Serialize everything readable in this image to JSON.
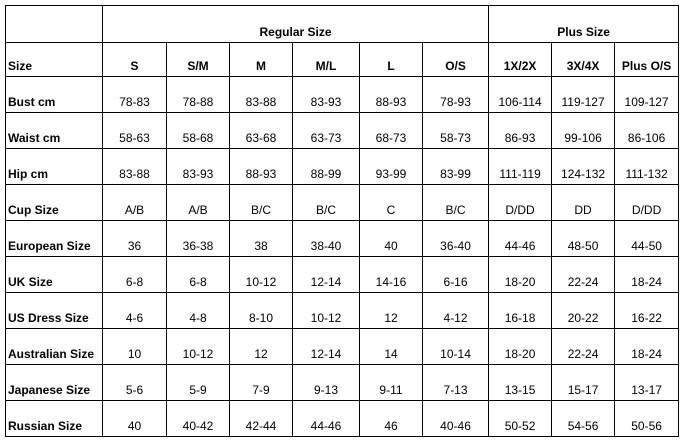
{
  "groups": {
    "regular": "Regular Size",
    "plus": "Plus Size"
  },
  "header": [
    "Size",
    "S",
    "S/M",
    "M",
    "M/L",
    "L",
    "O/S",
    "1X/2X",
    "3X/4X",
    "Plus O/S"
  ],
  "rows": [
    [
      "Bust cm",
      "78-83",
      "78-88",
      "83-88",
      "83-93",
      "88-93",
      "78-93",
      "106-114",
      "119-127",
      "109-127"
    ],
    [
      "Waist cm",
      "58-63",
      "58-68",
      "63-68",
      "63-73",
      "68-73",
      "58-73",
      "86-93",
      "99-106",
      "86-106"
    ],
    [
      "Hip cm",
      "83-88",
      "83-93",
      "88-93",
      "88-99",
      "93-99",
      "83-99",
      "111-119",
      "124-132",
      "111-132"
    ],
    [
      "Cup Size",
      "A/B",
      "A/B",
      "B/C",
      "B/C",
      "C",
      "B/C",
      "D/DD",
      "DD",
      "D/DD"
    ],
    [
      "European Size",
      "36",
      "36-38",
      "38",
      "38-40",
      "40",
      "36-40",
      "44-46",
      "48-50",
      "44-50"
    ],
    [
      "UK Size",
      "6-8",
      "6-8",
      "10-12",
      "12-14",
      "14-16",
      "6-16",
      "18-20",
      "22-24",
      "18-24"
    ],
    [
      "US Dress Size",
      "4-6",
      "4-8",
      "8-10",
      "10-12",
      "12",
      "4-12",
      "16-18",
      "20-22",
      "16-22"
    ],
    [
      "Australian Size",
      "10",
      "10-12",
      "12",
      "12-14",
      "14",
      "10-14",
      "18-20",
      "22-24",
      "18-24"
    ],
    [
      "Japanese Size",
      "5-6",
      "5-9",
      "7-9",
      "9-13",
      "9-11",
      "7-13",
      "13-15",
      "15-17",
      "13-17"
    ],
    [
      "Russian Size",
      "40",
      "40-42",
      "42-44",
      "44-46",
      "46",
      "40-46",
      "50-52",
      "54-56",
      "50-56"
    ]
  ]
}
